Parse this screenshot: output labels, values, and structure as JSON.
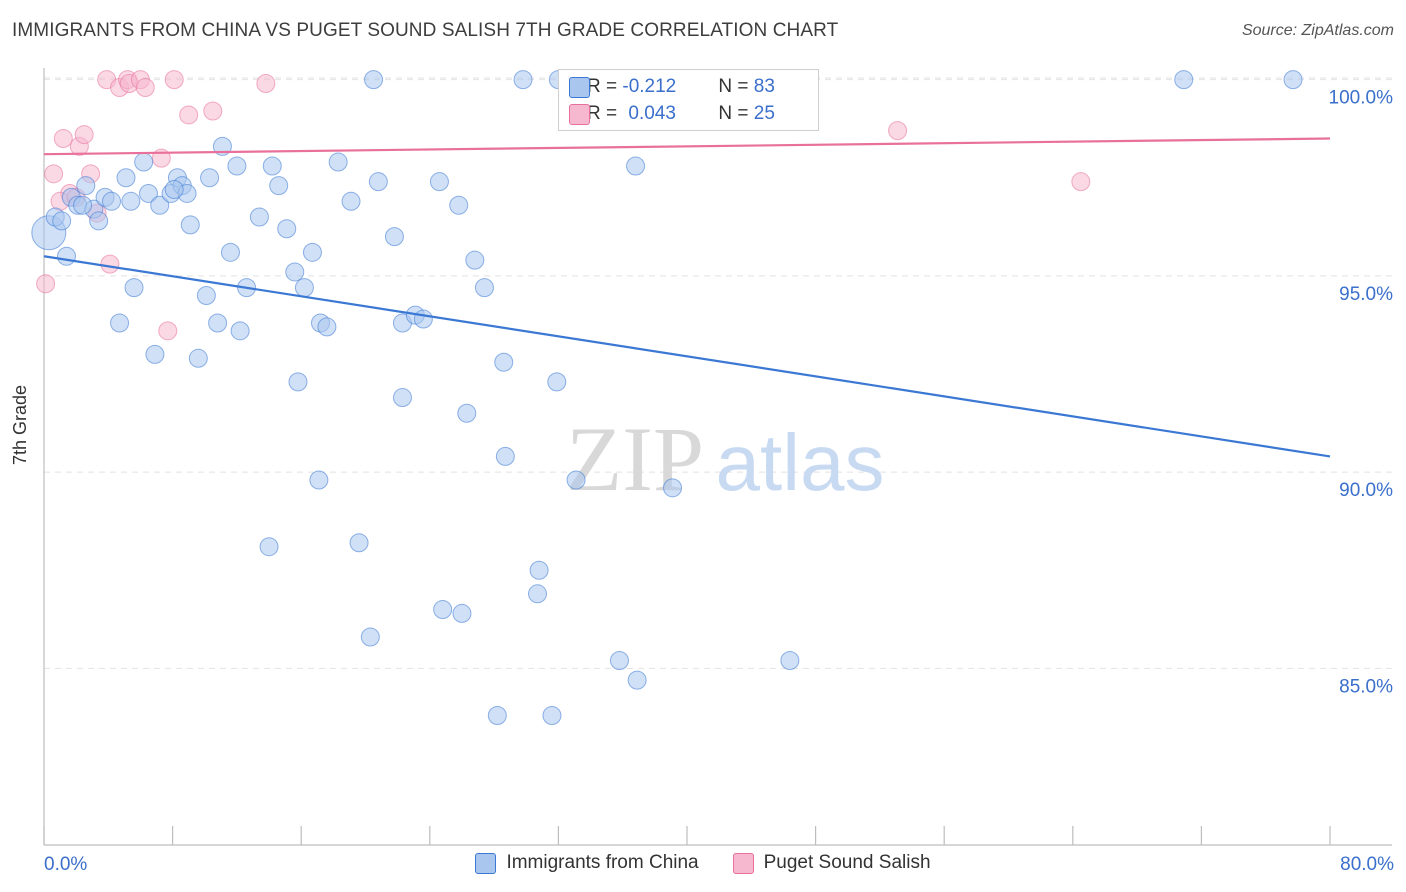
{
  "title": "IMMIGRANTS FROM CHINA VS PUGET SOUND SALISH 7TH GRADE CORRELATION CHART",
  "source": "Source: ZipAtlas.com",
  "watermark": {
    "zip": "ZIP",
    "atlas": "atlas"
  },
  "colors": {
    "blue": "#3a78d4",
    "blue_fill": "#a9c6ee",
    "pink": "#e8709a",
    "pink_fill": "#f6b8ce",
    "tick_text": "#3a6fcb",
    "grid": "#e2e2e2"
  },
  "stats_box": {
    "rows": [
      {
        "r_label": "R = ",
        "r_value": "-0.212",
        "n_label": "N = ",
        "n_value": "83"
      },
      {
        "r_label": "R = ",
        "r_value": "0.043",
        "n_label": "N = ",
        "n_value": "25"
      }
    ]
  },
  "chart_data": {
    "type": "scatter",
    "title": "IMMIGRANTS FROM CHINA VS PUGET SOUND SALISH 7TH GRADE CORRELATION CHART",
    "xlabel": "",
    "ylabel": "7th Grade",
    "xlim": [
      0,
      80
    ],
    "ylim": [
      80.5,
      100.5
    ],
    "x_tick_labels": [
      "0.0%",
      "80.0%"
    ],
    "y_ticks": [
      85,
      90,
      95,
      100
    ],
    "y_tick_labels": [
      "85.0%",
      "90.0%",
      "95.0%",
      "100.0%"
    ],
    "grid": true,
    "legend_position": "bottom",
    "series": [
      {
        "name": "Immigrants from China",
        "color": "#3a78d4",
        "trend": {
          "x": [
            0,
            80
          ],
          "y": [
            95.5,
            90.4
          ]
        },
        "points": [
          [
            0.3,
            96.1
          ],
          [
            0.7,
            96.5
          ],
          [
            1.1,
            96.4
          ],
          [
            1.4,
            95.5
          ],
          [
            1.7,
            97.0
          ],
          [
            2.1,
            96.8
          ],
          [
            2.6,
            97.3
          ],
          [
            3.1,
            96.7
          ],
          [
            3.4,
            96.4
          ],
          [
            3.8,
            97.0
          ],
          [
            4.2,
            96.9
          ],
          [
            5.1,
            97.5
          ],
          [
            5.4,
            96.9
          ],
          [
            6.2,
            97.9
          ],
          [
            6.5,
            97.1
          ],
          [
            7.2,
            96.8
          ],
          [
            7.9,
            97.1
          ],
          [
            8.3,
            97.5
          ],
          [
            8.6,
            97.3
          ],
          [
            8.9,
            97.1
          ],
          [
            9.1,
            96.3
          ],
          [
            10.3,
            97.5
          ],
          [
            11.1,
            98.3
          ],
          [
            11.6,
            95.6
          ],
          [
            12.0,
            97.8
          ],
          [
            13.4,
            96.5
          ],
          [
            14.2,
            97.8
          ],
          [
            14.6,
            97.3
          ],
          [
            15.1,
            96.2
          ],
          [
            15.6,
            95.1
          ],
          [
            16.2,
            94.7
          ],
          [
            16.7,
            95.6
          ],
          [
            17.2,
            93.8
          ],
          [
            18.3,
            97.9
          ],
          [
            19.1,
            96.9
          ],
          [
            20.8,
            97.4
          ],
          [
            21.8,
            96.0
          ],
          [
            22.3,
            93.8
          ],
          [
            23.1,
            94.0
          ],
          [
            23.6,
            93.9
          ],
          [
            24.6,
            97.4
          ],
          [
            25.8,
            96.8
          ],
          [
            26.8,
            95.4
          ],
          [
            27.4,
            94.7
          ],
          [
            4.7,
            93.8
          ],
          [
            5.6,
            94.7
          ],
          [
            6.9,
            93.0
          ],
          [
            9.6,
            92.9
          ],
          [
            10.1,
            94.5
          ],
          [
            10.8,
            93.8
          ],
          [
            12.2,
            93.6
          ],
          [
            12.6,
            94.7
          ],
          [
            15.8,
            92.3
          ],
          [
            17.6,
            93.7
          ],
          [
            22.3,
            91.9
          ],
          [
            26.3,
            91.5
          ],
          [
            28.6,
            92.8
          ],
          [
            28.7,
            90.4
          ],
          [
            31.9,
            92.3
          ],
          [
            17.1,
            89.8
          ],
          [
            33.1,
            89.8
          ],
          [
            39.1,
            89.6
          ],
          [
            14.0,
            88.1
          ],
          [
            19.6,
            88.2
          ],
          [
            30.8,
            87.5
          ],
          [
            30.7,
            86.9
          ],
          [
            20.3,
            85.8
          ],
          [
            24.8,
            86.5
          ],
          [
            26.0,
            86.4
          ],
          [
            35.8,
            85.2
          ],
          [
            36.9,
            84.7
          ],
          [
            46.4,
            85.2
          ],
          [
            28.2,
            83.8
          ],
          [
            31.6,
            83.8
          ],
          [
            36.8,
            97.8
          ],
          [
            20.5,
            100.0
          ],
          [
            29.8,
            100.0
          ],
          [
            32.0,
            100.0
          ],
          [
            40.4,
            100.0
          ],
          [
            70.9,
            100.0
          ],
          [
            77.7,
            100.0
          ],
          [
            2.4,
            96.8
          ],
          [
            8.1,
            97.2
          ]
        ]
      },
      {
        "name": "Puget Sound Salish",
        "color": "#e8709a",
        "trend": {
          "x": [
            0,
            80
          ],
          "y": [
            98.1,
            98.5
          ]
        },
        "points": [
          [
            0.1,
            94.8
          ],
          [
            0.6,
            97.6
          ],
          [
            1.2,
            98.5
          ],
          [
            1.6,
            97.1
          ],
          [
            2.2,
            98.3
          ],
          [
            2.5,
            98.6
          ],
          [
            2.9,
            97.6
          ],
          [
            3.3,
            96.6
          ],
          [
            4.1,
            95.3
          ],
          [
            3.9,
            100.0
          ],
          [
            4.7,
            99.8
          ],
          [
            5.2,
            100.0
          ],
          [
            5.3,
            99.9
          ],
          [
            6.0,
            100.0
          ],
          [
            6.3,
            99.8
          ],
          [
            7.3,
            98.0
          ],
          [
            7.7,
            93.6
          ],
          [
            8.1,
            100.0
          ],
          [
            9.0,
            99.1
          ],
          [
            10.5,
            99.2
          ],
          [
            13.8,
            99.9
          ],
          [
            53.1,
            98.7
          ],
          [
            64.5,
            97.4
          ],
          [
            1.0,
            96.9
          ],
          [
            2.0,
            97.0
          ]
        ]
      }
    ]
  }
}
